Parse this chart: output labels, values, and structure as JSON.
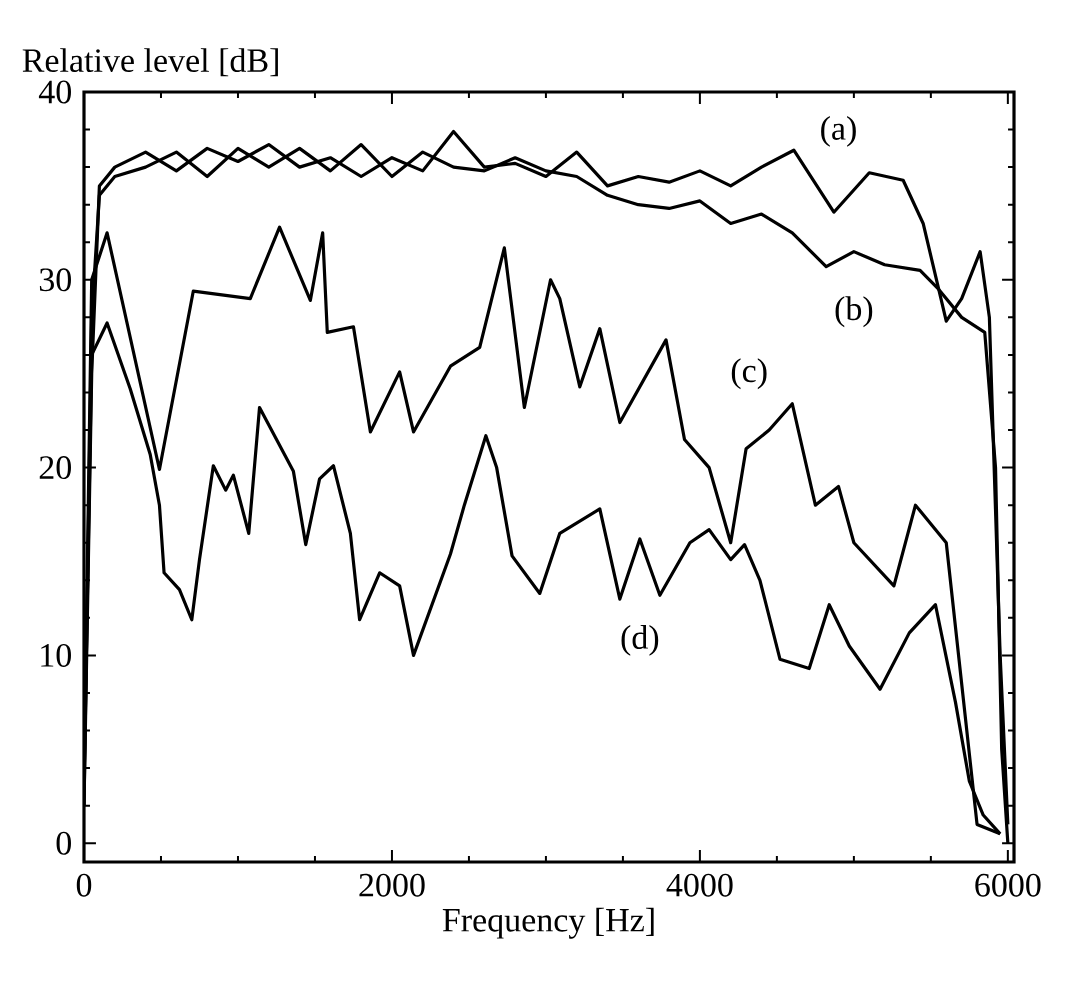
{
  "chart_data": {
    "type": "line",
    "xlabel": "Frequency [Hz]",
    "ylabel": "Relative level [dB]",
    "xlim": [
      0,
      6040
    ],
    "ylim": [
      -1,
      40
    ],
    "xticks": [
      0,
      2000,
      4000,
      6000
    ],
    "yticks": [
      0,
      10,
      20,
      30,
      40
    ],
    "marker": "none",
    "line_style": "solid",
    "annotations": [
      {
        "text": "(a)",
        "x": 4900,
        "y": 37.9
      },
      {
        "text": "(b)",
        "x": 5000,
        "y": 28.3
      },
      {
        "text": "(c)",
        "x": 4320,
        "y": 25
      },
      {
        "text": "(d)",
        "x": 3610,
        "y": 10.8
      }
    ],
    "series": [
      {
        "color": "#000000",
        "x": [
          0,
          50,
          100,
          200,
          400,
          600,
          800,
          1000,
          1200,
          1400,
          1600,
          1800,
          2000,
          2200,
          2400,
          2600,
          2800,
          3000,
          3200,
          3400,
          3600,
          3800,
          4000,
          4200,
          4400,
          4610,
          4870,
          5100,
          5320,
          5450,
          5600,
          5700,
          5820,
          5880,
          5950,
          6000
        ],
        "values": [
          2,
          25,
          35,
          36,
          36.8,
          35.8,
          37,
          36.3,
          37.2,
          36,
          36.5,
          35.5,
          36.5,
          35.8,
          37.9,
          36,
          36.2,
          35.5,
          36.8,
          35,
          35.5,
          35.2,
          35.8,
          35,
          36,
          36.9,
          33.6,
          35.7,
          35.3,
          33,
          27.8,
          29,
          31.5,
          28,
          10,
          1
        ]
      },
      {
        "color": "#000000",
        "x": [
          0,
          50,
          100,
          200,
          400,
          600,
          800,
          1000,
          1200,
          1400,
          1600,
          1800,
          2000,
          2200,
          2400,
          2600,
          2800,
          3000,
          3200,
          3400,
          3600,
          3800,
          4000,
          4200,
          4400,
          4600,
          4820,
          5000,
          5200,
          5430,
          5550,
          5700,
          5850,
          5920,
          5960,
          6000
        ],
        "values": [
          2,
          28,
          34.5,
          35.5,
          36,
          36.8,
          35.5,
          37,
          36,
          37,
          35.8,
          37.2,
          35.5,
          36.8,
          36,
          35.8,
          36.5,
          35.8,
          35.5,
          34.5,
          34,
          33.8,
          34.2,
          33,
          33.5,
          32.5,
          30.7,
          31.5,
          30.8,
          30.5,
          29.5,
          28,
          27.2,
          20,
          5,
          0
        ]
      },
      {
        "color": "#000000",
        "x": [
          0,
          50,
          150,
          490,
          710,
          1080,
          1270,
          1470,
          1550,
          1580,
          1750,
          1860,
          2050,
          2140,
          2380,
          2570,
          2730,
          2860,
          3030,
          3090,
          3220,
          3350,
          3480,
          3780,
          3900,
          4060,
          4200,
          4300,
          4450,
          4600,
          4750,
          4900,
          5000,
          5260,
          5400,
          5600,
          5800,
          5950
        ],
        "values": [
          3,
          30,
          32.5,
          19.9,
          29.4,
          29,
          32.8,
          28.9,
          32.5,
          27.2,
          27.5,
          21.9,
          25.1,
          21.9,
          25.4,
          26.4,
          31.7,
          23.2,
          30,
          29,
          24.3,
          27.4,
          22.4,
          26.8,
          21.5,
          20,
          16,
          21,
          22,
          23.4,
          18,
          19,
          16,
          13.7,
          18,
          16,
          1,
          0.5
        ]
      },
      {
        "color": "#000000",
        "x": [
          0,
          50,
          150,
          300,
          430,
          490,
          520,
          620,
          700,
          750,
          840,
          920,
          970,
          1070,
          1140,
          1250,
          1360,
          1440,
          1530,
          1620,
          1730,
          1790,
          1920,
          2050,
          2140,
          2380,
          2470,
          2610,
          2680,
          2780,
          2960,
          3090,
          3350,
          3480,
          3610,
          3740,
          3935,
          4060,
          4200,
          4290,
          4390,
          4520,
          4710,
          4840,
          4970,
          5170,
          5360,
          5530,
          5660,
          5750,
          5840,
          5950
        ],
        "values": [
          3,
          26,
          27.7,
          24.2,
          20.7,
          18,
          14.4,
          13.5,
          11.9,
          15.1,
          20.1,
          18.8,
          19.6,
          16.5,
          23.2,
          21.5,
          19.8,
          15.9,
          19.4,
          20.1,
          16.5,
          11.9,
          14.4,
          13.7,
          10,
          15.4,
          18,
          21.7,
          20,
          15.3,
          13.3,
          16.5,
          17.8,
          13,
          16.2,
          13.2,
          16,
          16.7,
          15.1,
          15.9,
          14,
          9.8,
          9.3,
          12.7,
          10.5,
          8.2,
          11.2,
          12.7,
          7.5,
          3.3,
          1.5,
          0.5
        ]
      }
    ]
  }
}
